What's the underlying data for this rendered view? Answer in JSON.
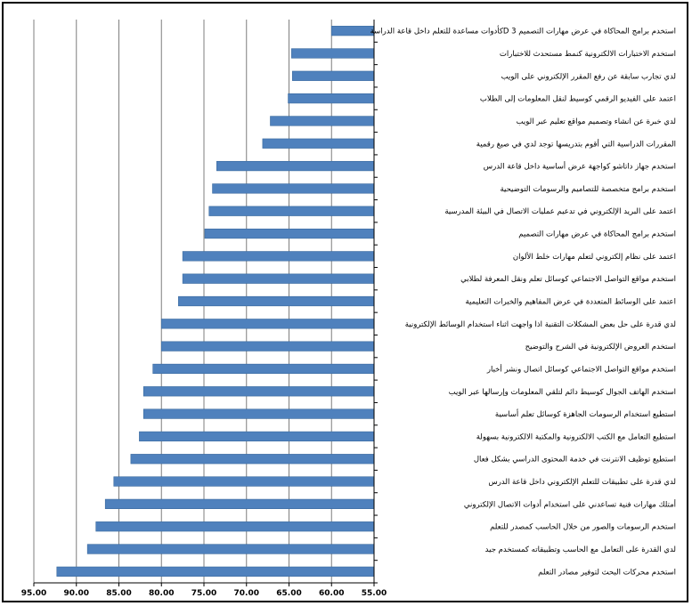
{
  "colors": {
    "bar": "#4f81bd",
    "bar_stroke": "#3a6a9e",
    "gridline": "#7f7f7f",
    "axis": "#000000"
  },
  "chart_data": {
    "type": "bar",
    "orientation": "horizontal",
    "x_reversed": true,
    "title": "",
    "xlabel": "",
    "ylabel": "",
    "xlim": [
      55,
      95
    ],
    "xticks": [
      "95.00",
      "90.00",
      "85.00",
      "80.00",
      "75.00",
      "70.00",
      "65.00",
      "60.00",
      "55.00"
    ],
    "grid": true,
    "legend": "none",
    "categories": [
      "استخدم برامج المحاكاة في عرض مهارات التصميم 3 Dكأدوات مساعدة للتعلم داخل قاعة الدراسة",
      "استخدم الاختبارات الالكترونية كنمط مستحدث للاختبارات",
      "لدي تجارب سابقة عن رفع المقرر الإلكتروني على الويب",
      "اعتمد على الفيديو الرقمي كوسيط لنقل المعلومات إلى الطلاب",
      "لدي خبرة عن انشاء وتصميم مواقع تعليم عبر الويب",
      "المقررات الدراسية التي أقوم بتدريسها توجد لدي في صيغ رقمية",
      "استخدم جهاز داتاشو كواجهة عرض أساسية داخل قاعة الدرس",
      "استخدم برامج متخصصة للتصاميم والرسومات التوضيحية",
      "اعتمد على البريد الإلكتروني في تدعيم عمليات الاتصال في البيئة المدرسية",
      "استخدم برامج المحاكاة في عرض مهارات التصميم",
      "اعتمد على نظام إلكتروني لتعلم مهارات خلط الألوان",
      "استخدم مواقع التواصل الاجتماعي كوسائل تعلم ونقل المعرفة لطلابي",
      "اعتمد على الوسائط المتعددة في عرض المفاهيم والخبرات التعليمية",
      "لدي قدرة على حل بعض المشكلات التقنية اذا واجهت اثناء استخدام الوسائط الإلكترونية",
      "استخدم العروض الإلكترونية في الشرح والتوضيح",
      "استخدم مواقع التواصل الاجتماعي كوسائل اتصال ونشر أخبار",
      "استخدم الهاتف الجوال كوسيط دائم لتلقي المعلومات وإرسالها عبر الويب",
      "استطيع استخدام الرسومات الجاهزة كوسائل تعلم أساسية",
      "استطيع التعامل مع الكتب الالكترونية والمكتبة الالكترونية بسهولة",
      "استطيع توظيف الانترنت في خدمة المحتوى الدراسي بشكل فعال",
      "لدي قدرة على تطبيقات للتعلم الإلكتروني داخل قاعة الدرس",
      "أمتلك مهارات فنية تساعدني على استخدام أدوات الاتصال الإلكتروني",
      "استخدم الرسومات والصور من خلال الحاسب كمصدر للتعلم",
      "لدي القدرة على التعامل مع الحاسب وتطبيقاته كمستخدم جيد",
      "استخدم محركات البحث لتوفير مصادر التعلم"
    ],
    "values": [
      60.0,
      64.7,
      64.6,
      65.1,
      67.2,
      68.1,
      73.5,
      74.0,
      74.4,
      74.9,
      77.5,
      77.5,
      78.0,
      80.0,
      80.0,
      81.0,
      82.1,
      82.1,
      82.6,
      83.6,
      85.6,
      86.6,
      87.7,
      88.7,
      92.3
    ]
  }
}
